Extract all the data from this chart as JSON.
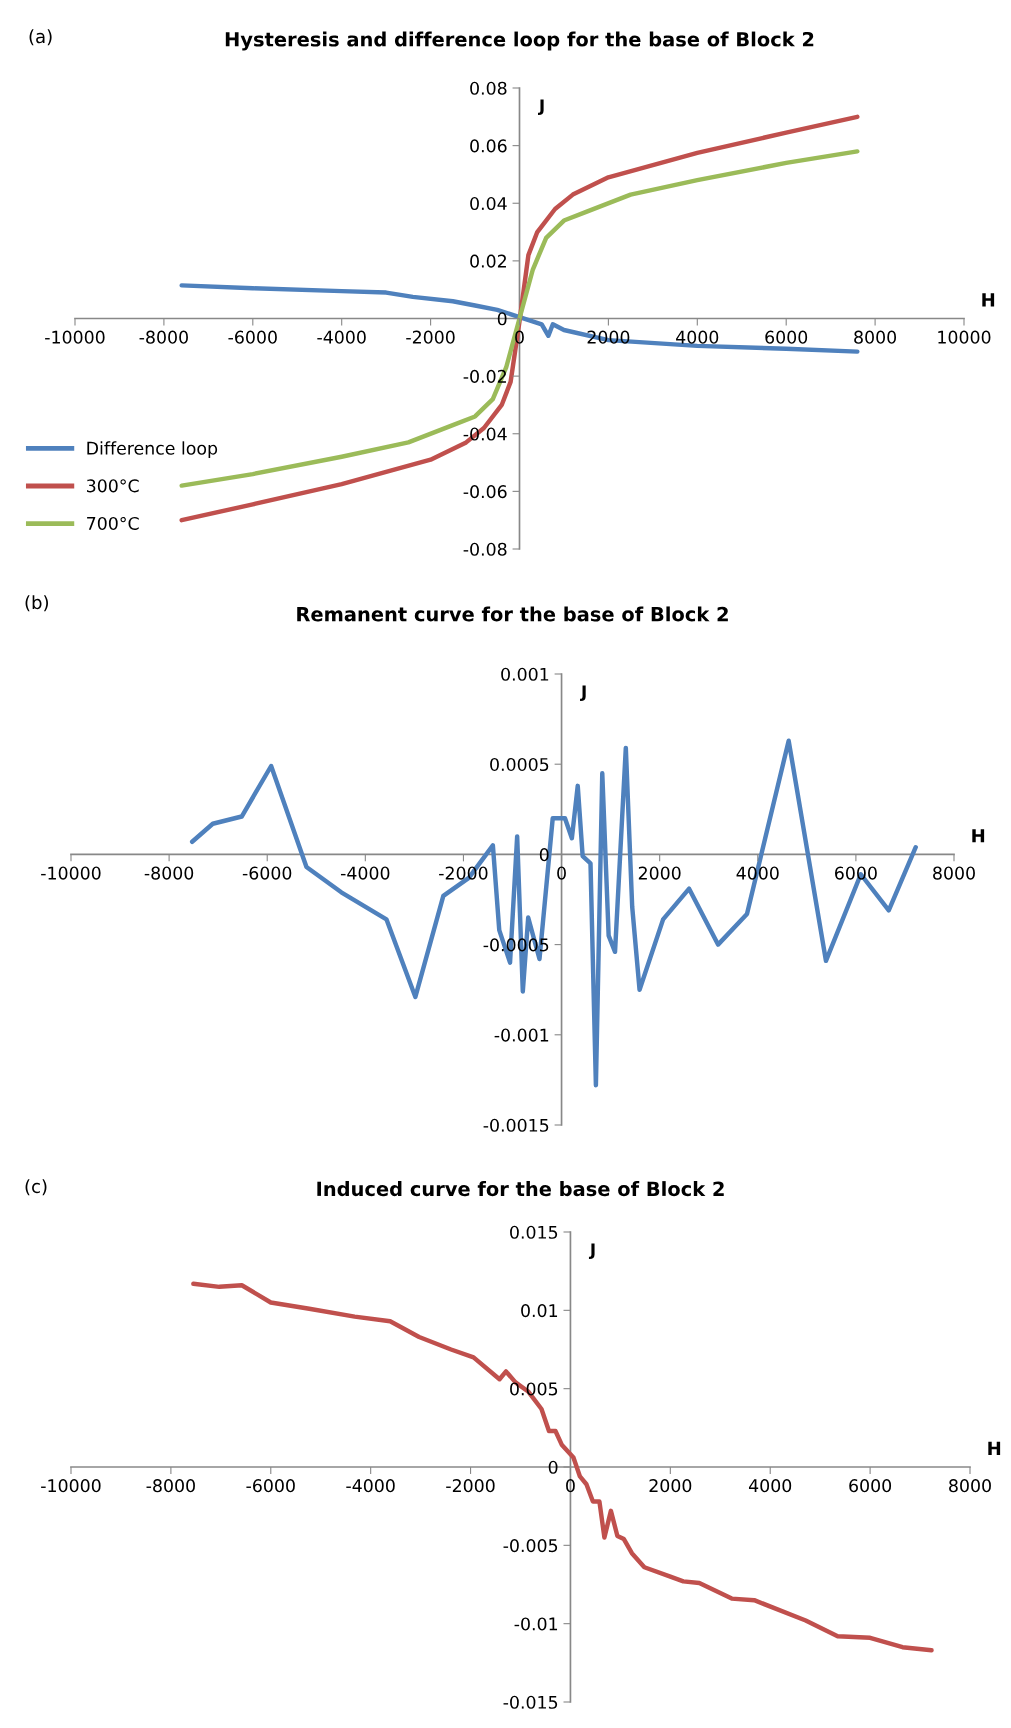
{
  "chart_data": [
    {
      "type": "line",
      "title": "Hysteresis and difference loop for the base of Block 2",
      "xlabel": "H",
      "ylabel": "J",
      "annotations": [
        "(a)"
      ],
      "legend": "bottom left",
      "grid": false,
      "xlim": [
        -10000,
        10000
      ],
      "ylim": [
        -0.08,
        0.08
      ],
      "xticks": [
        -10000,
        -8000,
        -6000,
        -4000,
        -2000,
        0,
        2000,
        4000,
        6000,
        8000,
        10000
      ],
      "yticks": [
        -0.08,
        -0.06,
        -0.04,
        -0.02,
        0,
        0.02,
        0.04,
        0.06,
        0.08
      ],
      "series": [
        {
          "name": "Difference loop",
          "color": "#4f81bd",
          "x": [
            -7600,
            -6000,
            -4000,
            -3000,
            -2400,
            -1500,
            -1000,
            -500,
            0,
            500,
            650,
            750,
            1000,
            2000,
            4000,
            6000,
            7600
          ],
          "values": [
            0.0115,
            0.0105,
            0.0095,
            0.009,
            0.0075,
            0.006,
            0.0045,
            0.003,
            0.0005,
            -0.002,
            -0.006,
            -0.002,
            -0.004,
            -0.0075,
            -0.0095,
            -0.0105,
            -0.0115
          ]
        },
        {
          "name": "300°C",
          "color": "#c0504d",
          "x": [
            -7600,
            -6000,
            -4000,
            -2000,
            -1200,
            -800,
            -400,
            -200,
            0,
            200,
            400,
            800,
            1200,
            2000,
            4000,
            6000,
            7600
          ],
          "values": [
            -0.07,
            -0.0645,
            -0.0575,
            -0.049,
            -0.043,
            -0.038,
            -0.03,
            -0.022,
            -0.001,
            0.022,
            0.03,
            0.038,
            0.043,
            0.049,
            0.0575,
            0.0645,
            0.07
          ]
        },
        {
          "name": "700°C",
          "color": "#9bbb59",
          "x": [
            -7600,
            -6000,
            -4000,
            -2500,
            -1500,
            -1000,
            -600,
            -300,
            0,
            300,
            600,
            1000,
            1500,
            2500,
            4000,
            6000,
            7600
          ],
          "values": [
            -0.058,
            -0.054,
            -0.048,
            -0.043,
            -0.037,
            -0.034,
            -0.028,
            -0.017,
            0,
            0.017,
            0.028,
            0.034,
            0.037,
            0.043,
            0.048,
            0.054,
            0.058
          ]
        }
      ]
    },
    {
      "type": "line",
      "title": "Remanent curve for the base of Block 2",
      "xlabel": "H",
      "ylabel": "J",
      "annotations": [
        "(b)"
      ],
      "grid": false,
      "xlim": [
        -10000,
        8000
      ],
      "ylim": [
        -0.0015,
        0.001
      ],
      "xticks": [
        -10000,
        -8000,
        -6000,
        -4000,
        -2000,
        0,
        2000,
        4000,
        6000,
        8000
      ],
      "yticks": [
        -0.0015,
        -0.001,
        -0.0005,
        0,
        0.0005,
        0.001
      ],
      "series": [
        {
          "color": "#4f81bd",
          "x": [
            -7530,
            -7110,
            -6520,
            -5920,
            -5200,
            -4490,
            -3570,
            -2980,
            -2410,
            -1890,
            -1400,
            -1270,
            -1050,
            -905,
            -790,
            -680,
            -450,
            -180,
            70,
            210,
            330,
            430,
            590,
            700,
            830,
            960,
            1090,
            1310,
            1440,
            1590,
            2070,
            2600,
            3190,
            3780,
            4630,
            5390,
            6100,
            6670,
            7220
          ],
          "values": [
            7e-05,
            0.00017,
            0.00021,
            0.00049,
            -7e-05,
            -0.00021,
            -0.00036,
            -0.00079,
            -0.00023,
            -0.00013,
            5e-05,
            -0.00042,
            -0.0006,
            0.0001,
            -0.00076,
            -0.00035,
            -0.00058,
            0.0002,
            0.0002,
            9e-05,
            0.00038,
            -1e-05,
            -5e-05,
            -0.00128,
            0.00045,
            -0.00045,
            -0.00054,
            0.00059,
            -0.00029,
            -0.00075,
            -0.00036,
            -0.00019,
            -0.0005,
            -0.00033,
            0.00063,
            -0.00059,
            -0.00011,
            -0.00031,
            4e-05
          ]
        }
      ]
    },
    {
      "type": "line",
      "title": "Induced curve for the base of Block 2",
      "xlabel": "H",
      "ylabel": "J",
      "annotations": [
        "(c)"
      ],
      "grid": false,
      "xlim": [
        -10000,
        8000
      ],
      "ylim": [
        -0.015,
        0.015
      ],
      "xticks": [
        -10000,
        -8000,
        -6000,
        -4000,
        -2000,
        0,
        2000,
        4000,
        6000,
        8000
      ],
      "yticks": [
        -0.015,
        -0.01,
        -0.005,
        0,
        0.005,
        0.01,
        0.015
      ],
      "series": [
        {
          "color": "#c0504d",
          "x": [
            -7550,
            -7030,
            -6580,
            -6000,
            -5230,
            -4320,
            -3610,
            -3030,
            -2390,
            -1940,
            -1420,
            -1290,
            -1100,
            -840,
            -580,
            -430,
            -300,
            -170,
            60,
            190,
            320,
            450,
            580,
            680,
            810,
            940,
            1070,
            1230,
            1480,
            2000,
            2260,
            2580,
            3230,
            3680,
            4710,
            5350,
            6000,
            6650,
            7230
          ],
          "values": [
            0.0117,
            0.0115,
            0.0116,
            0.0105,
            0.0101,
            0.0096,
            0.0093,
            0.0083,
            0.0075,
            0.007,
            0.0056,
            0.0061,
            0.0054,
            0.0048,
            0.0037,
            0.0023,
            0.0023,
            0.0014,
            0.0006,
            -0.0006,
            -0.0011,
            -0.0022,
            -0.0022,
            -0.0045,
            -0.0028,
            -0.0044,
            -0.0046,
            -0.0055,
            -0.0064,
            -0.007,
            -0.0073,
            -0.0074,
            -0.0084,
            -0.0085,
            -0.0098,
            -0.0108,
            -0.0109,
            -0.0115,
            -0.0117
          ]
        }
      ]
    }
  ]
}
